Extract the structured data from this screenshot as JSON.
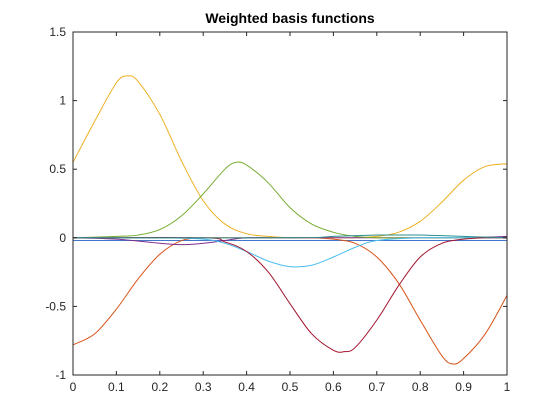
{
  "chart_data": {
    "type": "line",
    "title": "Weighted basis functions",
    "xlabel": "",
    "ylabel": "",
    "xlim": [
      0,
      1
    ],
    "ylim": [
      -1,
      1.5
    ],
    "grid": false,
    "x_ticks": [
      "0",
      "0.1",
      "0.2",
      "0.3",
      "0.4",
      "0.5",
      "0.6",
      "0.7",
      "0.8",
      "0.9",
      "1"
    ],
    "y_ticks": [
      "-1",
      "-0.5",
      "0",
      "0.5",
      "1",
      "1.5"
    ],
    "series": [
      {
        "color": "#4477cc",
        "x": [
          0,
          0.25,
          0.5,
          0.75,
          1
        ],
        "y": [
          -0.02,
          -0.02,
          -0.02,
          -0.02,
          -0.02
        ]
      },
      {
        "color": "#d95319",
        "x": [
          0,
          0.05,
          0.1,
          0.15,
          0.2,
          0.25,
          0.3,
          0.35,
          0.4,
          0.45,
          0.5,
          0.55,
          0.6,
          0.65,
          0.7,
          0.75,
          0.8,
          0.85,
          0.875,
          0.9,
          0.95,
          1
        ],
        "y": [
          -0.78,
          -0.7,
          -0.52,
          -0.3,
          -0.12,
          -0.02,
          0.0,
          0.0,
          0.0,
          0.0,
          0.0,
          0.0,
          -0.01,
          -0.04,
          -0.14,
          -0.33,
          -0.6,
          -0.86,
          -0.92,
          -0.88,
          -0.7,
          -0.42
        ]
      },
      {
        "color": "#edb120",
        "x": [
          0,
          0.05,
          0.1,
          0.125,
          0.15,
          0.2,
          0.25,
          0.3,
          0.35,
          0.4,
          0.45,
          0.5,
          0.55,
          0.6,
          0.65,
          0.7,
          0.75,
          0.8,
          0.85,
          0.9,
          0.95,
          1
        ],
        "y": [
          0.55,
          0.85,
          1.13,
          1.18,
          1.14,
          0.9,
          0.56,
          0.27,
          0.1,
          0.03,
          0.01,
          0.0,
          0.0,
          0.0,
          0.0,
          0.01,
          0.04,
          0.12,
          0.26,
          0.42,
          0.52,
          0.54
        ]
      },
      {
        "color": "#7e2f8e",
        "x": [
          0,
          0.1,
          0.2,
          0.25,
          0.3,
          0.35,
          0.4,
          0.5,
          0.6,
          0.7,
          0.8,
          0.9,
          1
        ],
        "y": [
          0.0,
          -0.01,
          -0.04,
          -0.05,
          -0.04,
          -0.02,
          0.0,
          0.0,
          0.0,
          0.0,
          0.0,
          0.0,
          0.01
        ]
      },
      {
        "color": "#77ac30",
        "x": [
          0,
          0.1,
          0.15,
          0.2,
          0.25,
          0.3,
          0.35,
          0.375,
          0.4,
          0.45,
          0.5,
          0.55,
          0.6,
          0.65,
          0.7,
          0.8,
          0.9,
          1
        ],
        "y": [
          0.0,
          0.01,
          0.02,
          0.06,
          0.16,
          0.32,
          0.5,
          0.55,
          0.53,
          0.4,
          0.22,
          0.1,
          0.04,
          0.01,
          0.0,
          0.0,
          0.0,
          0.0
        ]
      },
      {
        "color": "#4dbeee",
        "x": [
          0,
          0.2,
          0.3,
          0.35,
          0.4,
          0.45,
          0.5,
          0.55,
          0.6,
          0.65,
          0.7,
          0.8,
          0.9,
          1
        ],
        "y": [
          0.0,
          0.0,
          -0.01,
          -0.04,
          -0.1,
          -0.17,
          -0.21,
          -0.2,
          -0.14,
          -0.07,
          -0.02,
          0.0,
          0.0,
          0.0
        ]
      },
      {
        "color": "#a2142f",
        "x": [
          0,
          0.3,
          0.35,
          0.4,
          0.45,
          0.5,
          0.55,
          0.6,
          0.625,
          0.65,
          0.7,
          0.75,
          0.8,
          0.85,
          0.9,
          0.95,
          1
        ],
        "y": [
          0.0,
          0.0,
          -0.03,
          -0.1,
          -0.25,
          -0.48,
          -0.7,
          -0.82,
          -0.83,
          -0.8,
          -0.6,
          -0.35,
          -0.14,
          -0.04,
          -0.01,
          0.0,
          0.0
        ]
      },
      {
        "color": "#2a8f8f",
        "x": [
          0,
          0.5,
          0.6,
          0.7,
          0.75,
          0.8,
          0.9,
          1
        ],
        "y": [
          0.0,
          0.0,
          0.01,
          0.02,
          0.02,
          0.02,
          0.01,
          0.0
        ]
      }
    ]
  }
}
